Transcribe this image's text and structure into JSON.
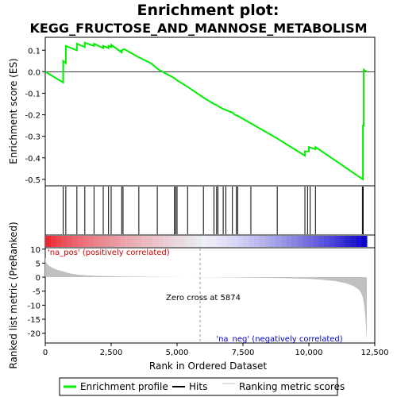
{
  "title_line1": "Enrichment plot:",
  "title_line2": "KEGG_FRUCTOSE_AND_MANNOSE_METABOLISM",
  "colors": {
    "profile": "#00ee00",
    "hits": "#000000",
    "metric": "#c0c0c0",
    "pos_label": "#cc0000",
    "neg_label": "#0000cc"
  },
  "chart_data": [
    {
      "type": "line",
      "name": "enrichment-profile",
      "ylabel": "Enrichment score (ES)",
      "xlim": [
        0,
        12500
      ],
      "ylim": [
        -0.53,
        0.16
      ],
      "y_ticks": [
        0.1,
        0.0,
        -0.1,
        -0.2,
        -0.3,
        -0.4,
        -0.5
      ],
      "y_tick_labels": [
        "0.1",
        "0.0",
        "-0.1",
        "-0.2",
        "-0.3",
        "-0.4",
        "-0.5"
      ],
      "x": [
        0,
        680,
        680,
        780,
        780,
        1200,
        1200,
        1500,
        1500,
        1850,
        1850,
        2200,
        2200,
        2400,
        2400,
        2500,
        2500,
        2900,
        2900,
        3000,
        3500,
        4000,
        4300,
        4900,
        5000,
        5400,
        6000,
        6400,
        6500,
        6700,
        6800,
        7100,
        7200,
        7300,
        7800,
        8800,
        9850,
        9850,
        10000,
        10000,
        10250,
        10250,
        12050,
        12050,
        12080,
        12080,
        12200
      ],
      "y": [
        0.0,
        -0.05,
        0.05,
        0.04,
        0.12,
        0.1,
        0.13,
        0.115,
        0.135,
        0.12,
        0.13,
        0.11,
        0.12,
        0.11,
        0.12,
        0.115,
        0.125,
        0.09,
        0.1,
        0.105,
        0.07,
        0.04,
        0.01,
        -0.03,
        -0.04,
        -0.07,
        -0.12,
        -0.15,
        -0.155,
        -0.17,
        -0.175,
        -0.19,
        -0.2,
        -0.205,
        -0.24,
        -0.31,
        -0.39,
        -0.37,
        -0.37,
        -0.35,
        -0.36,
        -0.35,
        -0.5,
        -0.25,
        -0.25,
        0.01,
        0.0
      ]
    },
    {
      "type": "scatter",
      "name": "hits",
      "x": [
        680,
        780,
        1200,
        1500,
        1850,
        2200,
        2400,
        2500,
        2900,
        2950,
        3550,
        4250,
        4900,
        4950,
        5000,
        5400,
        6000,
        6400,
        6500,
        6550,
        6750,
        6850,
        7100,
        7250,
        7300,
        7800,
        8800,
        9850,
        9950,
        10050,
        10250,
        12030,
        12060
      ]
    },
    {
      "type": "area",
      "name": "ranked-list-metric",
      "xlabel": "Rank in Ordered Dataset",
      "ylabel": "Ranked list metric (PreRanked)",
      "xlim": [
        0,
        12500
      ],
      "ylim": [
        -23.5,
        10.5
      ],
      "x_ticks": [
        0,
        2500,
        5000,
        7500,
        10000,
        12500
      ],
      "x_tick_labels": [
        "0",
        "2,500",
        "5,000",
        "7,500",
        "10,000",
        "12,500"
      ],
      "y_ticks": [
        10,
        5,
        0,
        -5,
        -10,
        -15,
        -20
      ],
      "y_tick_labels": [
        "10",
        "5",
        "0",
        "-5",
        "-10",
        "-15",
        "-20"
      ],
      "x": [
        0,
        50,
        150,
        300,
        500,
        700,
        900,
        1200,
        1600,
        2000,
        2500,
        3000,
        4000,
        5000,
        5874,
        7000,
        8000,
        9000,
        10000,
        10500,
        11000,
        11400,
        11700,
        11900,
        12000,
        12050,
        12100,
        12150,
        12200
      ],
      "y": [
        7,
        5,
        4,
        3.2,
        2.5,
        2,
        1.4,
        0.9,
        0.6,
        0.45,
        0.35,
        0.25,
        0.12,
        0.05,
        0,
        -0.1,
        -0.2,
        -0.35,
        -0.6,
        -0.9,
        -1.4,
        -2.2,
        -3.2,
        -4.5,
        -6,
        -7.5,
        -10,
        -15,
        -22.5
      ],
      "annotations": {
        "pos": "'na_pos' (positively correlated)",
        "neg": "'na_neg' (negatively correlated)",
        "zero_cross": "Zero cross at 5874"
      },
      "zero_cross": 5874
    }
  ],
  "legend": {
    "items": [
      "Enrichment profile",
      "Hits",
      "Ranking metric scores"
    ]
  }
}
